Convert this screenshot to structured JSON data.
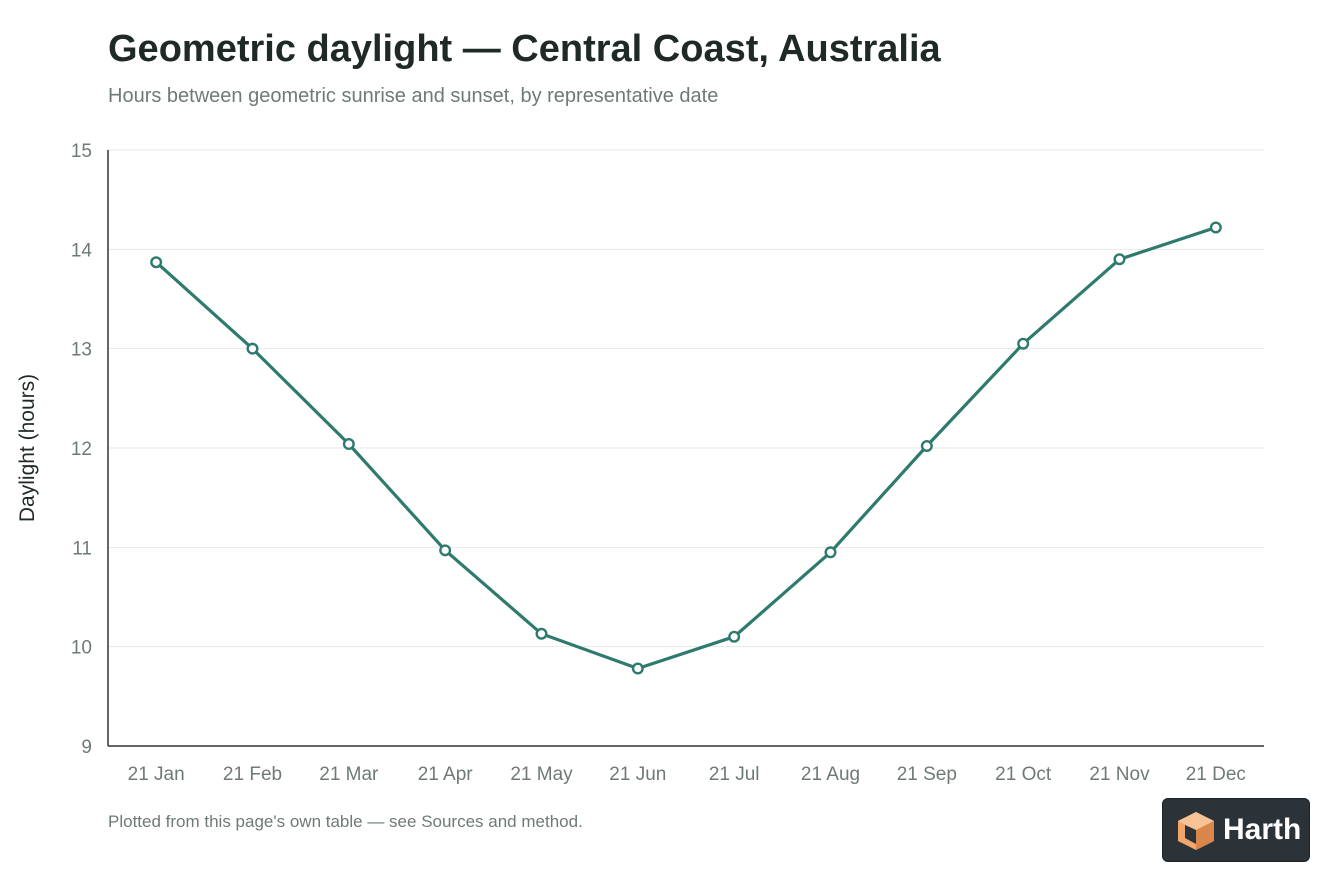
{
  "header": {
    "title": "Geometric daylight — Central Coast, Australia",
    "subtitle": "Hours between geometric sunrise and sunset, by representative date"
  },
  "footer": {
    "note": "Plotted from this page's own table — see Sources and method.",
    "logo_text": "Harth"
  },
  "colors": {
    "line": "#2e7b6e",
    "grid": "#e6e9e8",
    "axis": "#333333",
    "tick_text": "#6f7a77",
    "logo_orange": "#f2a56b"
  },
  "chart_data": {
    "type": "line",
    "title": "Geometric daylight — Central Coast, Australia",
    "subtitle": "Hours between geometric sunrise and sunset, by representative date",
    "ylabel": "Daylight (hours)",
    "xlabel": "",
    "categories": [
      "21 Jan",
      "21 Feb",
      "21 Mar",
      "21 Apr",
      "21 May",
      "21 Jun",
      "21 Jul",
      "21 Aug",
      "21 Sep",
      "21 Oct",
      "21 Nov",
      "21 Dec"
    ],
    "values": [
      13.87,
      13.0,
      12.04,
      10.97,
      10.13,
      9.78,
      10.1,
      10.95,
      12.02,
      13.05,
      13.9,
      14.22
    ],
    "ylim": [
      9,
      15
    ],
    "yticks": [
      9,
      10,
      11,
      12,
      13,
      14,
      15
    ],
    "grid": true,
    "legend": "none"
  }
}
